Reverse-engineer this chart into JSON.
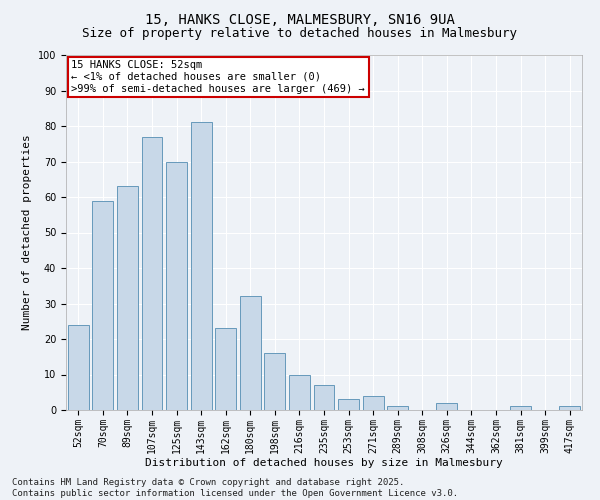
{
  "title1": "15, HANKS CLOSE, MALMESBURY, SN16 9UA",
  "title2": "Size of property relative to detached houses in Malmesbury",
  "xlabel": "Distribution of detached houses by size in Malmesbury",
  "ylabel": "Number of detached properties",
  "categories": [
    "52sqm",
    "70sqm",
    "89sqm",
    "107sqm",
    "125sqm",
    "143sqm",
    "162sqm",
    "180sqm",
    "198sqm",
    "216sqm",
    "235sqm",
    "253sqm",
    "271sqm",
    "289sqm",
    "308sqm",
    "326sqm",
    "344sqm",
    "362sqm",
    "381sqm",
    "399sqm",
    "417sqm"
  ],
  "values": [
    24,
    59,
    63,
    77,
    70,
    81,
    23,
    32,
    16,
    10,
    7,
    3,
    4,
    1,
    0,
    2,
    0,
    0,
    1,
    0,
    1
  ],
  "bar_color": "#c8d8e8",
  "bar_edge_color": "#6699bb",
  "annotation_title": "15 HANKS CLOSE: 52sqm",
  "annotation_line1": "← <1% of detached houses are smaller (0)",
  "annotation_line2": ">99% of semi-detached houses are larger (469) →",
  "annotation_box_facecolor": "#ffffff",
  "annotation_box_edgecolor": "#cc0000",
  "footer_line1": "Contains HM Land Registry data © Crown copyright and database right 2025.",
  "footer_line2": "Contains public sector information licensed under the Open Government Licence v3.0.",
  "ylim": [
    0,
    100
  ],
  "yticks": [
    0,
    10,
    20,
    30,
    40,
    50,
    60,
    70,
    80,
    90,
    100
  ],
  "background_color": "#eef2f7",
  "grid_color": "#ffffff",
  "title1_fontsize": 10,
  "title2_fontsize": 9,
  "axis_label_fontsize": 8,
  "tick_fontsize": 7,
  "annotation_fontsize": 7.5,
  "footer_fontsize": 6.5
}
